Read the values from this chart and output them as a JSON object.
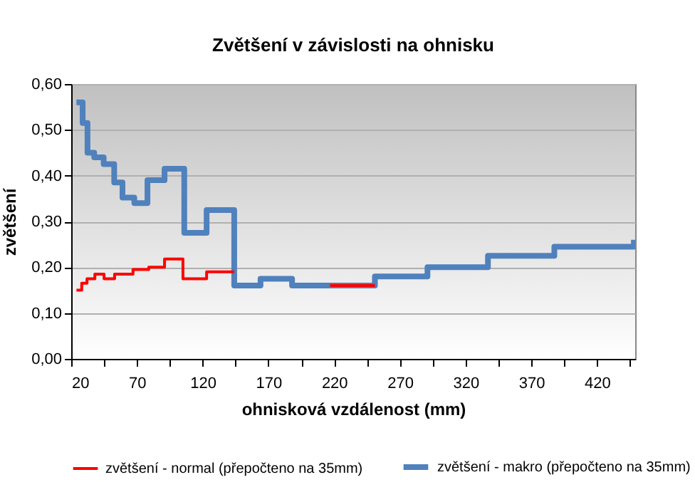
{
  "chart_data": {
    "type": "step",
    "title": "Zvětšení v závislosti na ohnisku",
    "xlabel": "ohnisková vzdálenost (mm)",
    "ylabel": "zvětšení",
    "xlim": [
      20,
      449
    ],
    "xticks": [
      20,
      {
        "value": 45,
        "label": null
      },
      70,
      {
        "value": 95,
        "label": null
      },
      120,
      {
        "value": 145,
        "label": null
      },
      170,
      {
        "value": 195,
        "label": null
      },
      220,
      {
        "value": 245,
        "label": null
      },
      270,
      {
        "value": 295,
        "label": null
      },
      320,
      {
        "value": 345,
        "label": null
      },
      370,
      {
        "value": 395,
        "label": null
      },
      420,
      {
        "value": 445,
        "label": null
      }
    ],
    "ylim": [
      0,
      0.6
    ],
    "yticks": [
      {
        "value": 0,
        "label": "0,00"
      },
      {
        "value": 0.1,
        "label": "0,10"
      },
      {
        "value": 0.2,
        "label": "0,20"
      },
      {
        "value": 0.3,
        "label": "0,30"
      },
      {
        "value": 0.4,
        "label": "0,40"
      },
      {
        "value": 0.5,
        "label": "0,50"
      },
      {
        "value": 0.6,
        "label": "0,60"
      }
    ],
    "grid": "y",
    "legend": "bottom",
    "series": [
      {
        "name": "zvětšení - normal (přepočteno na 35mm)",
        "color": "#ff0000",
        "x": [
          24,
          28,
          32,
          38,
          45,
          53,
          67,
          79,
          91,
          105,
          123,
          144,
          145,
          217,
          251
        ],
        "values": [
          0.15,
          0.165,
          0.175,
          0.185,
          0.175,
          0.185,
          0.195,
          0.2,
          0.218,
          0.175,
          0.19,
          0.19,
          null,
          0.16,
          0.16
        ]
      },
      {
        "name": "zvětšení - makro (přepočteno na 35mm)",
        "color": "#4f81bd",
        "x": [
          24,
          28.7,
          32.4,
          37.5,
          44.7,
          52.7,
          59,
          68,
          78,
          91,
          106,
          123,
          144,
          164,
          188,
          251,
          291,
          337,
          387.5,
          448
        ],
        "values": [
          0.56,
          0.515,
          0.45,
          0.44,
          0.425,
          0.385,
          0.352,
          0.34,
          0.39,
          0.415,
          0.275,
          0.325,
          0.16,
          0.175,
          0.16,
          0.18,
          0.2,
          0.225,
          0.245,
          0.26
        ]
      }
    ]
  }
}
